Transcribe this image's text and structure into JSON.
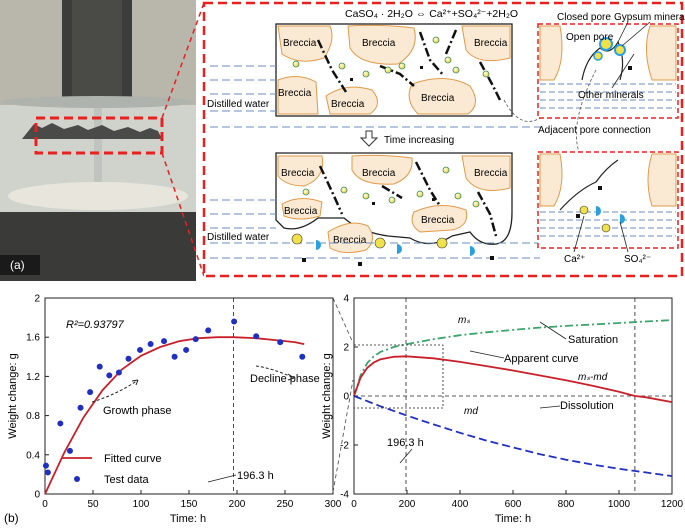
{
  "panel_a": {
    "label": "(a)",
    "equation": "CaSO₄ · 2H₂O ⇔ Ca²⁺+SO₄²⁻+2H₂O",
    "breccia": "Breccia",
    "distilled_water": "Distilled water",
    "time_increasing": "Time increasing",
    "closed_pore": "Closed pore",
    "gypsum_mineral": "Gypsum mineral",
    "open_pore": "Open pore",
    "other_minerals": "Other minerals",
    "adjacent_pore_connection": "Adjacent pore connection",
    "ca_ion": "Ca²⁺",
    "so4_ion": "SO₄²⁻"
  },
  "panel_b": {
    "label": "(b)",
    "r2": "R²=0.93797",
    "growth_phase": "Growth phase",
    "decline_phase": "Decline phase",
    "fitted_curve": "Fitted curve",
    "test_data": "Test data",
    "peak_time": "196.3 h",
    "right_peak_time": "196.3 h",
    "ms": "mₛ",
    "md": "md",
    "ms_md": "mₛ-md",
    "saturation": "Saturation",
    "apparent_curve": "Apparent curve",
    "dissolution": "Dissolution"
  },
  "colors": {
    "frame_red": "#e8201f",
    "fitted_red": "#c8202a",
    "dot_blue": "#1f2fbf",
    "saturation_green": "#3aa56a",
    "dissolution_blue": "#2030c0",
    "breccia_fill": "#fbead3",
    "breccia_edge": "#e09a4a",
    "water_blue": "#6a8fbf"
  },
  "chart_data": [
    {
      "type": "scatter",
      "xlabel": "Time: h",
      "ylabel": "Weight change: g",
      "xlim": [
        0,
        300
      ],
      "ylim": [
        0,
        2
      ],
      "xticks": [
        0,
        50,
        100,
        150,
        200,
        250,
        300
      ],
      "yticks": [
        0,
        0.4,
        0.8,
        1.2,
        1.6,
        2.0
      ],
      "ytick_labels": [
        "0",
        "0.4",
        "0.8",
        "1.2",
        "1.6",
        "2"
      ],
      "grid": false,
      "legend": "bottom-left",
      "series": [
        {
          "name": "Test data",
          "x": [
            1,
            3,
            16,
            26,
            37,
            47,
            57,
            67,
            77,
            87,
            99,
            110,
            124,
            135,
            147,
            157,
            170,
            197,
            220,
            245,
            268
          ],
          "y": [
            0.29,
            0.22,
            0.72,
            0.44,
            0.88,
            1.04,
            1.3,
            1.21,
            1.24,
            1.38,
            1.47,
            1.53,
            1.56,
            1.4,
            1.47,
            1.58,
            1.67,
            1.76,
            1.61,
            1.55,
            1.4
          ]
        },
        {
          "name": "Fitted curve",
          "x": [
            0,
            20,
            40,
            60,
            80,
            100,
            120,
            140,
            160,
            180,
            196.3,
            220,
            240,
            260,
            270
          ],
          "y": [
            0,
            0.42,
            0.78,
            1.06,
            1.27,
            1.41,
            1.5,
            1.56,
            1.59,
            1.6,
            1.6,
            1.59,
            1.57,
            1.55,
            1.53
          ]
        }
      ],
      "vline_x": 196.3
    },
    {
      "type": "line",
      "xlabel": "Time: h",
      "xlim": [
        0,
        1200
      ],
      "ylim": [
        -4,
        4
      ],
      "xticks": [
        0,
        200,
        400,
        600,
        800,
        1000,
        1200
      ],
      "yticks": [
        -4,
        -2,
        0,
        2,
        4
      ],
      "grid": false,
      "series": [
        {
          "name": "Saturation",
          "x": [
            0,
            25,
            50,
            75,
            100,
            150,
            200,
            300,
            400,
            500,
            600,
            700,
            800,
            900,
            1000,
            1100,
            1200
          ],
          "y": [
            0,
            0.85,
            1.35,
            1.62,
            1.8,
            2.0,
            2.12,
            2.32,
            2.48,
            2.6,
            2.7,
            2.79,
            2.86,
            2.92,
            2.98,
            3.04,
            3.1
          ]
        },
        {
          "name": "Apparent curve",
          "x": [
            0,
            25,
            50,
            75,
            100,
            150,
            196.3,
            300,
            400,
            500,
            600,
            700,
            800,
            900,
            1000,
            1060,
            1100,
            1200
          ],
          "y": [
            0,
            0.75,
            1.15,
            1.37,
            1.5,
            1.6,
            1.62,
            1.54,
            1.39,
            1.22,
            1.04,
            0.84,
            0.64,
            0.42,
            0.17,
            0.0,
            -0.05,
            -0.25
          ]
        },
        {
          "name": "Dissolution",
          "x": [
            0,
            100,
            200,
            300,
            400,
            500,
            600,
            700,
            800,
            900,
            1000,
            1100,
            1200
          ],
          "y": [
            0,
            -0.42,
            -0.8,
            -1.16,
            -1.5,
            -1.82,
            -2.1,
            -2.37,
            -2.6,
            -2.8,
            -2.97,
            -3.12,
            -3.27
          ]
        }
      ],
      "vlines_x": [
        196.3,
        1060
      ]
    }
  ]
}
